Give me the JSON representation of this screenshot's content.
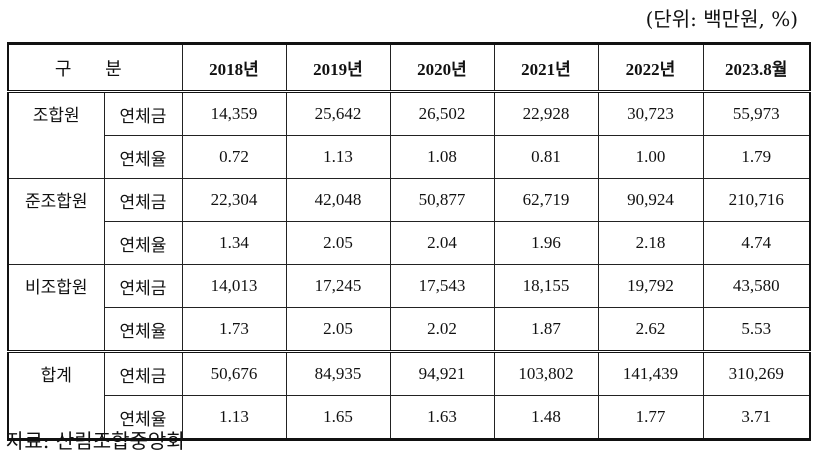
{
  "unit_note": "(단위: 백만원, %)",
  "table": {
    "header": {
      "category_label": "구 분",
      "years": [
        "2018년",
        "2019년",
        "2020년",
        "2021년",
        "2022년",
        "2023.8월"
      ]
    },
    "groups": [
      {
        "name": "조합원",
        "rows": [
          {
            "metric": "연체금",
            "values": [
              "14,359",
              "25,642",
              "26,502",
              "22,928",
              "30,723",
              "55,973"
            ]
          },
          {
            "metric": "연체율",
            "values": [
              "0.72",
              "1.13",
              "1.08",
              "0.81",
              "1.00",
              "1.79"
            ]
          }
        ]
      },
      {
        "name": "준조합원",
        "rows": [
          {
            "metric": "연체금",
            "values": [
              "22,304",
              "42,048",
              "50,877",
              "62,719",
              "90,924",
              "210,716"
            ]
          },
          {
            "metric": "연체율",
            "values": [
              "1.34",
              "2.05",
              "2.04",
              "1.96",
              "2.18",
              "4.74"
            ]
          }
        ]
      },
      {
        "name": "비조합원",
        "rows": [
          {
            "metric": "연체금",
            "values": [
              "14,013",
              "17,245",
              "17,543",
              "18,155",
              "19,792",
              "43,580"
            ]
          },
          {
            "metric": "연체율",
            "values": [
              "1.73",
              "2.05",
              "2.02",
              "1.87",
              "2.62",
              "5.53"
            ]
          }
        ]
      },
      {
        "name": "합계",
        "rows": [
          {
            "metric": "연체금",
            "values": [
              "50,676",
              "84,935",
              "94,921",
              "103,802",
              "141,439",
              "310,269"
            ]
          },
          {
            "metric": "연체율",
            "values": [
              "1.13",
              "1.65",
              "1.63",
              "1.48",
              "1.77",
              "3.71"
            ]
          }
        ]
      }
    ]
  },
  "source": "자료: 산림조합중앙회"
}
